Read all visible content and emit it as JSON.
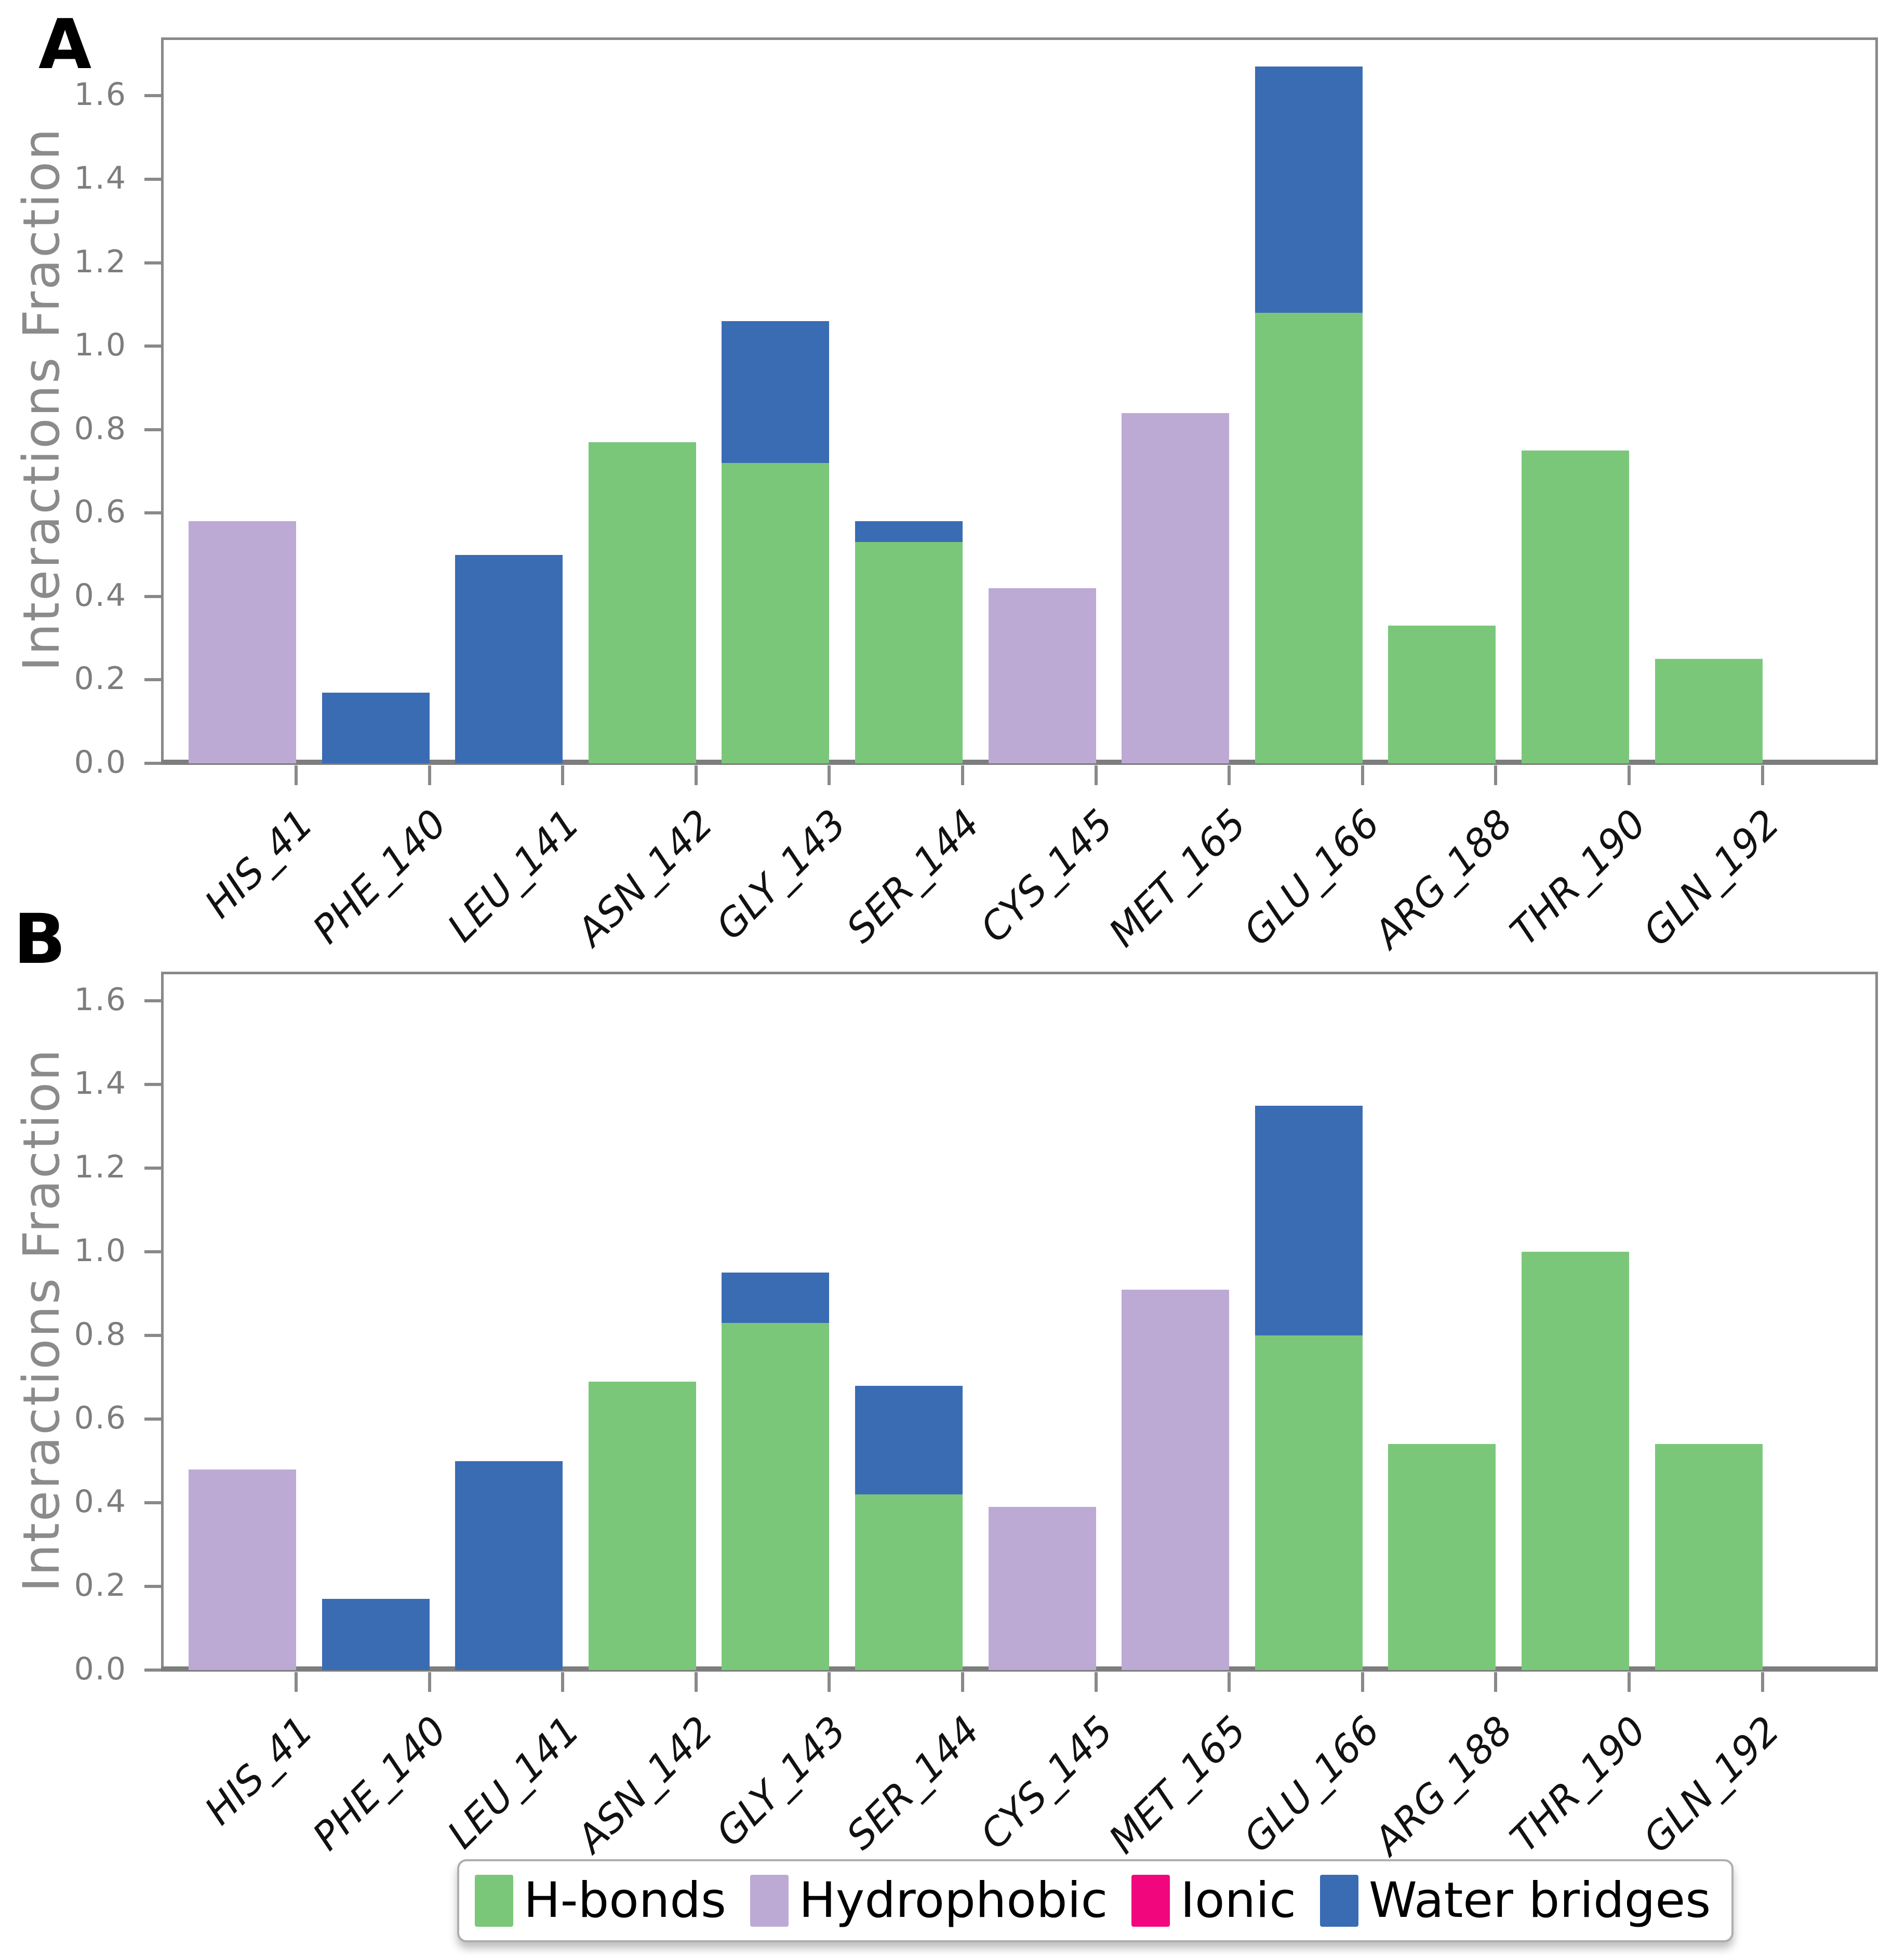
{
  "panels": {
    "a_label": "A",
    "b_label": "B"
  },
  "ylabel": "Interactions Fraction",
  "colors": {
    "h_bonds": "#7ac77a",
    "hydrophobic": "#bcaad4",
    "ionic": "#f1067e",
    "water_bridges": "#3a6cb4",
    "axis": "#898989",
    "tick_text": "#7d7d7d",
    "ylabel_text": "#8b8b8b"
  },
  "legend": {
    "items": [
      {
        "label": "H-bonds",
        "color_key": "h_bonds"
      },
      {
        "label": "Hydrophobic",
        "color_key": "hydrophobic"
      },
      {
        "label": "Ionic",
        "color_key": "ionic"
      },
      {
        "label": "Water bridges",
        "color_key": "water_bridges"
      }
    ]
  },
  "chart_data": [
    {
      "panel": "A",
      "type": "bar",
      "stacked": true,
      "ylabel": "Interactions Fraction",
      "categories": [
        "HIS_41",
        "PHE_140",
        "LEU_141",
        "ASN_142",
        "GLY_143",
        "SER_144",
        "CYS_145",
        "MET_165",
        "GLU_166",
        "ARG_188",
        "THR_190",
        "GLN_192"
      ],
      "yticks": [
        0.0,
        0.2,
        0.4,
        0.6,
        0.8,
        1.0,
        1.2,
        1.4,
        1.6
      ],
      "ylim": [
        0,
        1.74
      ],
      "grid": false,
      "series": [
        {
          "name": "H-bonds",
          "color_key": "h_bonds",
          "values": [
            0,
            0,
            0,
            0.77,
            0.72,
            0.53,
            0,
            0,
            1.08,
            0.33,
            0.75,
            0.25
          ]
        },
        {
          "name": "Hydrophobic",
          "color_key": "hydrophobic",
          "values": [
            0.58,
            0,
            0,
            0,
            0,
            0,
            0.42,
            0.84,
            0,
            0,
            0,
            0
          ]
        },
        {
          "name": "Ionic",
          "color_key": "ionic",
          "values": [
            0,
            0,
            0,
            0,
            0,
            0,
            0,
            0,
            0,
            0,
            0,
            0
          ]
        },
        {
          "name": "Water bridges",
          "color_key": "water_bridges",
          "values": [
            0,
            0.17,
            0.5,
            0,
            0.34,
            0.05,
            0,
            0,
            0.59,
            0,
            0,
            0
          ]
        }
      ]
    },
    {
      "panel": "B",
      "type": "bar",
      "stacked": true,
      "ylabel": "Interactions Fraction",
      "categories": [
        "HIS_41",
        "PHE_140",
        "LEU_141",
        "ASN_142",
        "GLY_143",
        "SER_144",
        "CYS_145",
        "MET_165",
        "GLU_166",
        "ARG_188",
        "THR_190",
        "GLN_192"
      ],
      "yticks": [
        0.0,
        0.2,
        0.4,
        0.6,
        0.8,
        1.0,
        1.2,
        1.4,
        1.6
      ],
      "ylim": [
        0,
        1.67
      ],
      "grid": false,
      "series": [
        {
          "name": "H-bonds",
          "color_key": "h_bonds",
          "values": [
            0,
            0,
            0,
            0.69,
            0.83,
            0.42,
            0,
            0,
            0.8,
            0.54,
            1.0,
            0.54
          ]
        },
        {
          "name": "Hydrophobic",
          "color_key": "hydrophobic",
          "values": [
            0.48,
            0,
            0,
            0,
            0,
            0,
            0.39,
            0.91,
            0,
            0,
            0,
            0
          ]
        },
        {
          "name": "Ionic",
          "color_key": "ionic",
          "values": [
            0,
            0,
            0,
            0,
            0,
            0,
            0,
            0,
            0,
            0,
            0,
            0
          ]
        },
        {
          "name": "Water bridges",
          "color_key": "water_bridges",
          "values": [
            0,
            0.17,
            0.5,
            0,
            0.12,
            0.26,
            0,
            0,
            0.55,
            0,
            0,
            0
          ]
        }
      ]
    }
  ]
}
